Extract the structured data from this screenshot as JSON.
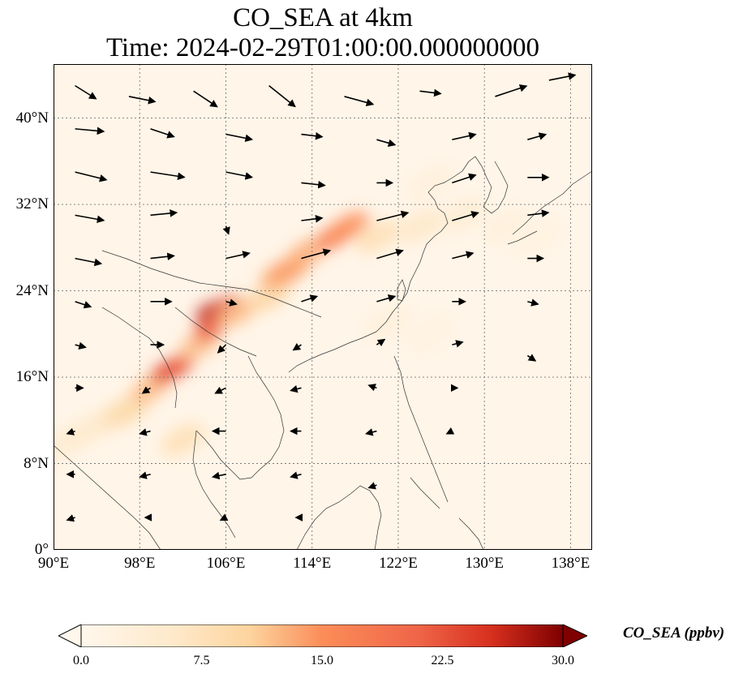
{
  "title": {
    "line1": "CO_SEA at 4km",
    "line2": "Time: 2024-02-29T01:00:00.000000000"
  },
  "map": {
    "projection": "PlateCarree",
    "extent": {
      "lon_min": 90,
      "lon_max": 140,
      "lat_min": 0,
      "lat_max": 45
    },
    "x_ticks": [
      {
        "lon": 90,
        "label": "90°E"
      },
      {
        "lon": 98,
        "label": "98°E"
      },
      {
        "lon": 106,
        "label": "106°E"
      },
      {
        "lon": 114,
        "label": "114°E"
      },
      {
        "lon": 122,
        "label": "122°E"
      },
      {
        "lon": 130,
        "label": "130°E"
      },
      {
        "lon": 138,
        "label": "138°E"
      }
    ],
    "y_ticks": [
      {
        "lat": 0,
        "label": "0°"
      },
      {
        "lat": 8,
        "label": "8°N"
      },
      {
        "lat": 16,
        "label": "16°N"
      },
      {
        "lat": 24,
        "label": "24°N"
      },
      {
        "lat": 32,
        "label": "32°N"
      },
      {
        "lat": 40,
        "label": "40°N"
      }
    ],
    "gridlines": true,
    "coastlines": true,
    "background_color": "#fff5e8"
  },
  "chart_data": {
    "type": "heatmap",
    "variable": "CO_SEA",
    "units": "ppbv",
    "colormap": "OrRd",
    "vmin": 0.0,
    "vmax": 30.0,
    "colorbar_extend": "both",
    "colorbar_ticks": [
      {
        "value": 0.0,
        "label": "0.0"
      },
      {
        "value": 7.5,
        "label": "7.5"
      },
      {
        "value": 15.0,
        "label": "15.0"
      },
      {
        "value": 22.5,
        "label": "22.5"
      },
      {
        "value": 30.0,
        "label": "30.0"
      }
    ],
    "colorbar_label": "CO_SEA (ppbv)",
    "plume": [
      {
        "lon": 90.5,
        "lat": 9.5,
        "value": 4
      },
      {
        "lon": 93,
        "lat": 11,
        "value": 5
      },
      {
        "lon": 96,
        "lat": 12.5,
        "value": 7
      },
      {
        "lon": 97,
        "lat": 13,
        "value": 9
      },
      {
        "lon": 99,
        "lat": 15,
        "value": 12
      },
      {
        "lon": 100.5,
        "lat": 16.5,
        "value": 24
      },
      {
        "lon": 101.5,
        "lat": 17,
        "value": 22
      },
      {
        "lon": 102,
        "lat": 10.2,
        "value": 8
      },
      {
        "lon": 103.5,
        "lat": 19,
        "value": 12
      },
      {
        "lon": 104.5,
        "lat": 22,
        "value": 27
      },
      {
        "lon": 106,
        "lat": 22.5,
        "value": 25
      },
      {
        "lon": 104.5,
        "lat": 20.5,
        "value": 22
      },
      {
        "lon": 107,
        "lat": 22,
        "value": 12
      },
      {
        "lon": 110,
        "lat": 23.5,
        "value": 10
      },
      {
        "lon": 111,
        "lat": 25.5,
        "value": 13
      },
      {
        "lon": 112,
        "lat": 26,
        "value": 14
      },
      {
        "lon": 113.5,
        "lat": 27.5,
        "value": 13
      },
      {
        "lon": 116,
        "lat": 29,
        "value": 17
      },
      {
        "lon": 117.5,
        "lat": 30,
        "value": 15
      },
      {
        "lon": 120,
        "lat": 29,
        "value": 8
      },
      {
        "lon": 124,
        "lat": 30,
        "value": 6
      },
      {
        "lon": 128,
        "lat": 31,
        "value": 4
      },
      {
        "lon": 132,
        "lat": 30,
        "value": 3
      },
      {
        "lon": 135,
        "lat": 29,
        "value": 2
      },
      {
        "lon": 125,
        "lat": 34,
        "value": 3
      },
      {
        "lon": 121,
        "lat": 21,
        "value": 3
      },
      {
        "lon": 125,
        "lat": 20,
        "value": 2
      }
    ],
    "wind_vectors": [
      {
        "lon": 92,
        "lat": 43,
        "u": 8,
        "v": -5
      },
      {
        "lon": 97,
        "lat": 42,
        "u": 10,
        "v": -2
      },
      {
        "lon": 103,
        "lat": 42.5,
        "u": 9,
        "v": -6
      },
      {
        "lon": 110,
        "lat": 43,
        "u": 10,
        "v": -8
      },
      {
        "lon": 117,
        "lat": 42,
        "u": 11,
        "v": -3
      },
      {
        "lon": 124,
        "lat": 42.5,
        "u": 8,
        "v": -1
      },
      {
        "lon": 131,
        "lat": 42,
        "u": 12,
        "v": 4
      },
      {
        "lon": 136,
        "lat": 43.5,
        "u": 10,
        "v": 2
      },
      {
        "lon": 92,
        "lat": 39,
        "u": 11,
        "v": -1
      },
      {
        "lon": 99,
        "lat": 39,
        "u": 9,
        "v": -3
      },
      {
        "lon": 106,
        "lat": 38.5,
        "u": 10,
        "v": -2
      },
      {
        "lon": 113,
        "lat": 38.5,
        "u": 8,
        "v": -1
      },
      {
        "lon": 120,
        "lat": 38,
        "u": 7,
        "v": -2
      },
      {
        "lon": 127,
        "lat": 38,
        "u": 9,
        "v": 2
      },
      {
        "lon": 134,
        "lat": 38,
        "u": 7,
        "v": 2
      },
      {
        "lon": 92,
        "lat": 35,
        "u": 12,
        "v": -3
      },
      {
        "lon": 99,
        "lat": 35,
        "u": 13,
        "v": -2
      },
      {
        "lon": 106,
        "lat": 35,
        "u": 10,
        "v": -2
      },
      {
        "lon": 113,
        "lat": 34,
        "u": 9,
        "v": -1
      },
      {
        "lon": 120,
        "lat": 34,
        "u": 6,
        "v": 0
      },
      {
        "lon": 127,
        "lat": 34,
        "u": 9,
        "v": 3
      },
      {
        "lon": 134,
        "lat": 34.5,
        "u": 8,
        "v": 0
      },
      {
        "lon": 92,
        "lat": 31,
        "u": 11,
        "v": -2
      },
      {
        "lon": 99,
        "lat": 31,
        "u": 10,
        "v": 1
      },
      {
        "lon": 106,
        "lat": 30,
        "u": 1,
        "v": -3
      },
      {
        "lon": 113,
        "lat": 30.5,
        "u": 8,
        "v": 1
      },
      {
        "lon": 120,
        "lat": 30.5,
        "u": 12,
        "v": 3
      },
      {
        "lon": 127,
        "lat": 30.5,
        "u": 10,
        "v": 3
      },
      {
        "lon": 134,
        "lat": 31,
        "u": 8,
        "v": 1
      },
      {
        "lon": 92,
        "lat": 27,
        "u": 10,
        "v": -2
      },
      {
        "lon": 99,
        "lat": 27,
        "u": 9,
        "v": 1
      },
      {
        "lon": 106,
        "lat": 27,
        "u": 9,
        "v": 2
      },
      {
        "lon": 113,
        "lat": 27,
        "u": 11,
        "v": 3
      },
      {
        "lon": 120,
        "lat": 27,
        "u": 10,
        "v": 3
      },
      {
        "lon": 127,
        "lat": 27,
        "u": 8,
        "v": 2
      },
      {
        "lon": 134,
        "lat": 27,
        "u": 6,
        "v": 0
      },
      {
        "lon": 92,
        "lat": 23,
        "u": 6,
        "v": -2
      },
      {
        "lon": 99,
        "lat": 23,
        "u": 8,
        "v": 0
      },
      {
        "lon": 106,
        "lat": 23,
        "u": 4,
        "v": -1
      },
      {
        "lon": 113,
        "lat": 23,
        "u": 6,
        "v": 2
      },
      {
        "lon": 120,
        "lat": 23,
        "u": 7,
        "v": 2
      },
      {
        "lon": 127,
        "lat": 23,
        "u": 5,
        "v": 0
      },
      {
        "lon": 134,
        "lat": 23,
        "u": 4,
        "v": -1
      },
      {
        "lon": 92,
        "lat": 19,
        "u": 4,
        "v": -1
      },
      {
        "lon": 99,
        "lat": 19,
        "u": 5,
        "v": 0
      },
      {
        "lon": 106,
        "lat": 19,
        "u": -3,
        "v": -3
      },
      {
        "lon": 113,
        "lat": 19,
        "u": -3,
        "v": -2
      },
      {
        "lon": 120,
        "lat": 19,
        "u": 3,
        "v": 2
      },
      {
        "lon": 127,
        "lat": 19,
        "u": 4,
        "v": 1
      },
      {
        "lon": 134,
        "lat": 18,
        "u": 3,
        "v": -2
      },
      {
        "lon": 92,
        "lat": 15,
        "u": 3,
        "v": 0
      },
      {
        "lon": 99,
        "lat": 15,
        "u": -3,
        "v": -2
      },
      {
        "lon": 106,
        "lat": 15,
        "u": -4,
        "v": -2
      },
      {
        "lon": 113,
        "lat": 15,
        "u": -4,
        "v": -1
      },
      {
        "lon": 120,
        "lat": 15,
        "u": -3,
        "v": 1
      },
      {
        "lon": 127,
        "lat": 15,
        "u": 2,
        "v": 0
      },
      {
        "lon": 92,
        "lat": 11,
        "u": -3,
        "v": -1
      },
      {
        "lon": 99,
        "lat": 11,
        "u": -4,
        "v": -1
      },
      {
        "lon": 106,
        "lat": 11,
        "u": -5,
        "v": 0
      },
      {
        "lon": 113,
        "lat": 11,
        "u": -4,
        "v": 0
      },
      {
        "lon": 120,
        "lat": 11,
        "u": -4,
        "v": -1
      },
      {
        "lon": 127,
        "lat": 11,
        "u": -2,
        "v": -1
      },
      {
        "lon": 92,
        "lat": 7,
        "u": -3,
        "v": 0
      },
      {
        "lon": 99,
        "lat": 7,
        "u": -4,
        "v": -1
      },
      {
        "lon": 106,
        "lat": 7,
        "u": -5,
        "v": -1
      },
      {
        "lon": 113,
        "lat": 7,
        "u": -4,
        "v": -1
      },
      {
        "lon": 120,
        "lat": 6,
        "u": -3,
        "v": -1
      },
      {
        "lon": 92,
        "lat": 3,
        "u": -3,
        "v": -1
      },
      {
        "lon": 99,
        "lat": 3,
        "u": -2,
        "v": 0
      },
      {
        "lon": 106,
        "lat": 3,
        "u": -2,
        "v": -1
      },
      {
        "lon": 113,
        "lat": 3,
        "u": -2,
        "v": 0
      }
    ]
  }
}
